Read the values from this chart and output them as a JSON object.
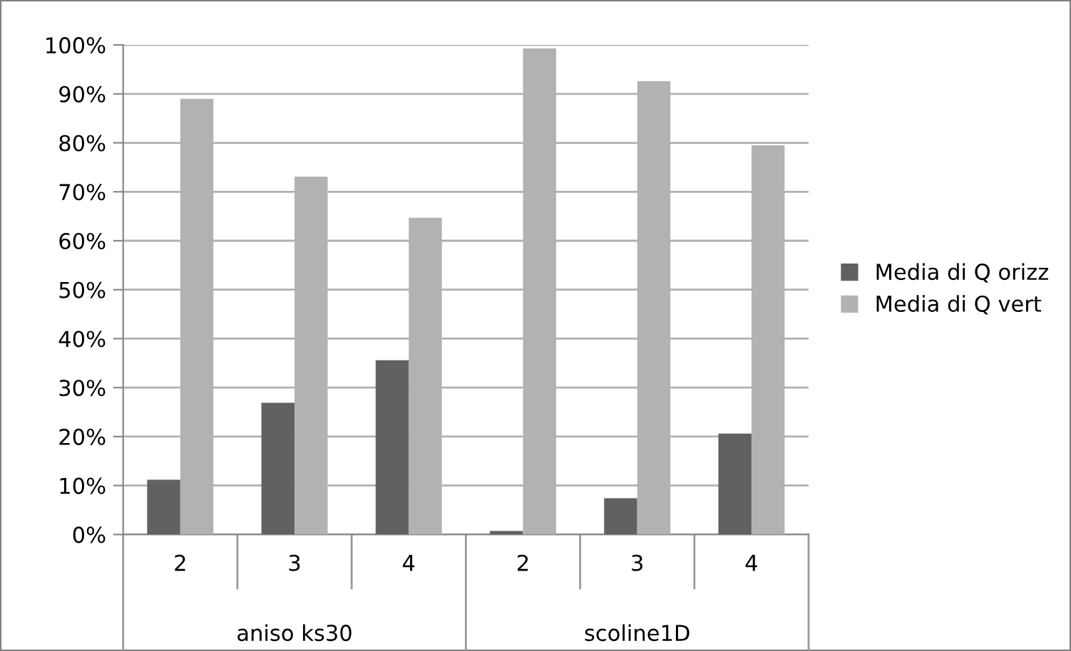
{
  "chart_data": {
    "type": "bar",
    "categories": [
      "2",
      "3",
      "4",
      "2",
      "3",
      "4"
    ],
    "series": [
      {
        "name": "Media di Q orizz",
        "color": "#616161",
        "values": [
          11.2,
          26.9,
          35.6,
          0.7,
          7.4,
          20.6
        ]
      },
      {
        "name": "Media di Q vert",
        "color": "#b2b2b2",
        "values": [
          89.0,
          73.1,
          64.7,
          99.3,
          92.6,
          79.5
        ]
      }
    ],
    "annotations": [
      "aniso ks30",
      "scoline1D"
    ],
    "ylim": [
      0,
      100
    ],
    "yticks": [
      {
        "value": 0,
        "label": "0%"
      },
      {
        "value": 10,
        "label": "10%"
      },
      {
        "value": 20,
        "label": "20%"
      },
      {
        "value": 30,
        "label": "30%"
      },
      {
        "value": 40,
        "label": "40%"
      },
      {
        "value": 50,
        "label": "50%"
      },
      {
        "value": 60,
        "label": "60%"
      },
      {
        "value": 70,
        "label": "70%"
      },
      {
        "value": 80,
        "label": "80%"
      },
      {
        "value": 90,
        "label": "90%"
      },
      {
        "value": 100,
        "label": "100%"
      }
    ],
    "grid": "y",
    "legend": "right"
  }
}
